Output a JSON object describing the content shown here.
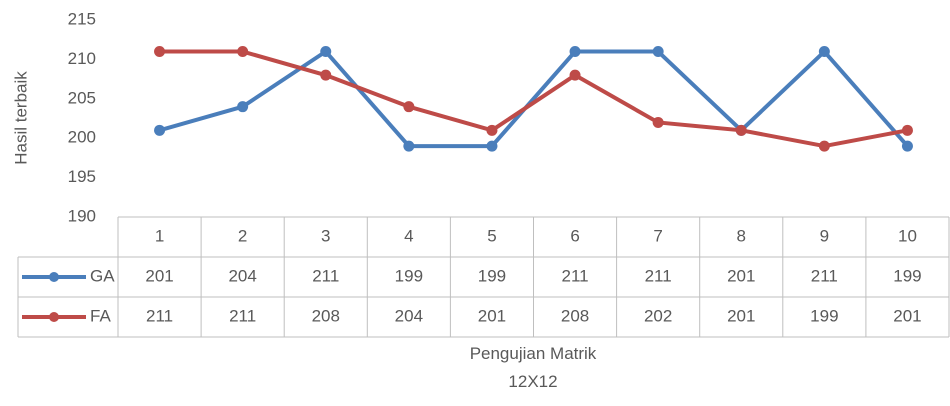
{
  "chart_data": {
    "type": "line",
    "ylabel": "Hasil  terbaik",
    "xlabel": "Pengujian Matrik 12X12",
    "categories": [
      "1",
      "2",
      "3",
      "4",
      "5",
      "6",
      "7",
      "8",
      "9",
      "10"
    ],
    "series": [
      {
        "name": "GA",
        "color": "#4a7ebb",
        "values": [
          201,
          204,
          211,
          199,
          199,
          211,
          211,
          201,
          211,
          199
        ]
      },
      {
        "name": "FA",
        "color": "#be4b48",
        "values": [
          211,
          211,
          208,
          204,
          201,
          208,
          202,
          201,
          199,
          201
        ]
      }
    ],
    "ylim": [
      190,
      215
    ],
    "yticks": [
      190,
      195,
      200,
      205,
      210,
      215
    ],
    "grid": false
  }
}
